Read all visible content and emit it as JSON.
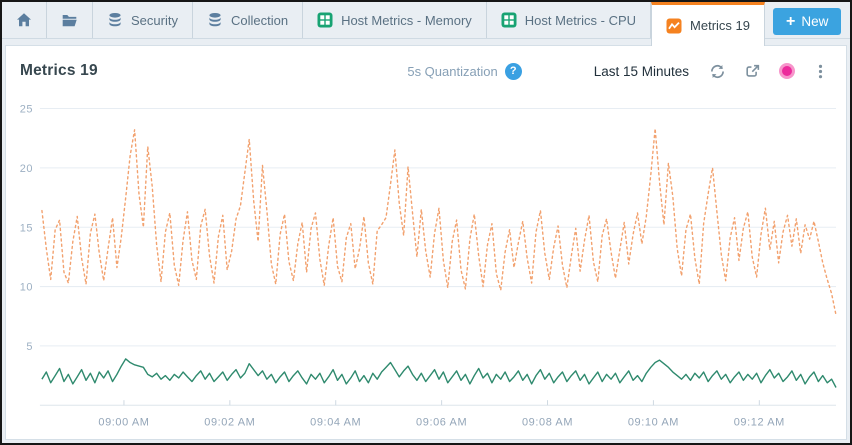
{
  "tabs": {
    "items": [
      {
        "icon": "home-icon",
        "label": ""
      },
      {
        "icon": "folder-icon",
        "label": ""
      },
      {
        "icon": "database-icon",
        "label": "Security"
      },
      {
        "icon": "database-icon",
        "label": "Collection"
      },
      {
        "icon": "grid-icon",
        "label": "Host Metrics - Memory"
      },
      {
        "icon": "grid-icon",
        "label": "Host Metrics - CPU"
      },
      {
        "icon": "chart-icon",
        "label": "Metrics 19",
        "active": true
      }
    ],
    "new_button_plus": "+",
    "new_button_label": "New"
  },
  "header": {
    "title": "Metrics 19",
    "quantization_label": "5s Quantization",
    "help_glyph": "?",
    "time_range_label": "Last 15 Minutes"
  },
  "colors": {
    "accent_orange": "#f58220",
    "tab_icon_green": "#18a373",
    "tab_icon_slate": "#5b7e9f",
    "new_button_blue": "#3ba3e0",
    "help_blue": "#3aa0e2",
    "live_dot_pink": "#ec2a9c",
    "series_orange": "#f2a16e",
    "series_green": "#2f8a6e",
    "grid_line": "#e7edf3"
  },
  "chart_data": {
    "type": "line",
    "title": "Metrics 19",
    "quantization": "5s",
    "time_range": "Last 15 Minutes",
    "grid": true,
    "legend": "none",
    "y_ticks": [
      5,
      10,
      15,
      20,
      25
    ],
    "y_axis_max": 26.2,
    "x_tick_labels": [
      "09:00 AM",
      "09:02 AM",
      "09:04 AM",
      "09:06 AM",
      "09:08 AM",
      "09:10 AM",
      "09:12 AM"
    ],
    "series": [
      {
        "name": "orange-metric",
        "color": "#f2a16e",
        "style": "dashed",
        "values": [
          16.4,
          13.2,
          10.6,
          14.8,
          15.6,
          11.2,
          10.3,
          13.8,
          15.9,
          12.4,
          10.2,
          14.5,
          16.1,
          12.8,
          10.5,
          13.2,
          15.8,
          11.6,
          14.2,
          17.5,
          21,
          23.2,
          17.8,
          15,
          21.8,
          18.4,
          13.5,
          10.4,
          14.6,
          16.2,
          11.8,
          10.1,
          13.9,
          16.3,
          12.2,
          10.6,
          15.1,
          16.5,
          12.6,
          10.3,
          14.2,
          16,
          11.4,
          13,
          15.7,
          16.8,
          19.6,
          22.4,
          17.2,
          13.8,
          20.2,
          16.4,
          11.9,
          10.2,
          14.4,
          16.1,
          12.1,
          10.5,
          13.6,
          15.4,
          11.2,
          14.9,
          16.2,
          12.3,
          10.1,
          13.4,
          15.8,
          11.7,
          10.4,
          14.1,
          15.3,
          11.5,
          13.2,
          15.9,
          12,
          10.2,
          14.7,
          15.2,
          15.8,
          18.6,
          21.5,
          17,
          14.3,
          20.1,
          16.2,
          12.5,
          16.5,
          13,
          10.8,
          14.5,
          16.6,
          12.2,
          9.9,
          13.8,
          15.6,
          11.4,
          9.8,
          14,
          16.1,
          12.6,
          10,
          13.5,
          15.3,
          11.1,
          9.7,
          12.9,
          14.8,
          11.6,
          13.7,
          15.5,
          12.4,
          10.3,
          14.6,
          16.4,
          12.8,
          10.6,
          13.3,
          15.1,
          11.8,
          9.9,
          12.6,
          14.9,
          11.3,
          13.9,
          16,
          12.1,
          10.4,
          14.3,
          15.7,
          12.9,
          10.7,
          13.1,
          15.4,
          11.9,
          14.4,
          16.2,
          13.6,
          15.9,
          19.4,
          23.3,
          18.8,
          15.2,
          20.4,
          17.6,
          13.2,
          10.9,
          14.8,
          16.1,
          12.4,
          10.2,
          15.3,
          17.8,
          20,
          16.3,
          12.7,
          10.5,
          14.1,
          15.8,
          12.2,
          14.9,
          16.3,
          12.5,
          10.8,
          14.4,
          16.6,
          13.1,
          15.5,
          12,
          14.6,
          16,
          13.4,
          15.7,
          12.8,
          15.2,
          14,
          15.5,
          13.8,
          12,
          10.6,
          9.4,
          7.6
        ]
      },
      {
        "name": "green-metric",
        "color": "#2f8a6e",
        "style": "solid",
        "values": [
          2.2,
          2.8,
          1.9,
          2.5,
          3.1,
          2,
          2.6,
          1.8,
          2.4,
          3,
          2.1,
          2.7,
          1.9,
          2.8,
          2.3,
          2.9,
          2,
          2.6,
          3.3,
          3.9,
          3.6,
          3.4,
          3.3,
          3.2,
          2.6,
          2.4,
          2.7,
          2.2,
          2.5,
          2.1,
          2.6,
          2.3,
          2.8,
          2.4,
          2,
          2.5,
          2.9,
          2.2,
          2.7,
          2,
          2.4,
          2.8,
          2.1,
          2.6,
          3,
          2.3,
          2.7,
          3.5,
          3,
          2.5,
          2.9,
          2.2,
          2.6,
          1.9,
          2.4,
          2.8,
          2,
          2.5,
          2.9,
          2.3,
          1.8,
          2.6,
          2.2,
          2.7,
          1.9,
          2.4,
          3,
          2.1,
          2.6,
          1.8,
          2.3,
          2.9,
          2,
          2.5,
          1.9,
          2.7,
          2.2,
          2.8,
          3.2,
          3.6,
          3,
          2.4,
          2.9,
          3.3,
          2.6,
          2.1,
          2.7,
          2,
          2.5,
          3,
          2.2,
          2.8,
          1.9,
          2.4,
          2.9,
          2.1,
          2.6,
          1.8,
          2.5,
          3.1,
          2.3,
          2.7,
          1.9,
          2.6,
          2.2,
          2.8,
          2,
          2.4,
          2.9,
          2.1,
          2.6,
          1.8,
          2.5,
          3,
          2.2,
          2.7,
          1.9,
          2.4,
          2.8,
          2,
          2.5,
          2.9,
          2.1,
          2.6,
          1.8,
          2.3,
          2.8,
          2,
          2.6,
          2.2,
          2.7,
          1.9,
          2.4,
          2.9,
          2.1,
          2.5,
          2,
          2.7,
          3.2,
          3.6,
          3.8,
          3.5,
          3.2,
          2.8,
          2.5,
          2.2,
          2.6,
          2.1,
          2.7,
          2.3,
          2.8,
          2,
          2.5,
          2.9,
          2.2,
          2.6,
          1.9,
          2.4,
          2.8,
          2.1,
          2.6,
          2.2,
          2.7,
          1.9,
          2.5,
          3,
          2.3,
          2.7,
          2,
          2.4,
          2.9,
          2.1,
          2.6,
          1.8,
          2.4,
          2.8,
          2,
          2.5,
          1.9,
          2.2,
          1.5
        ]
      }
    ]
  }
}
